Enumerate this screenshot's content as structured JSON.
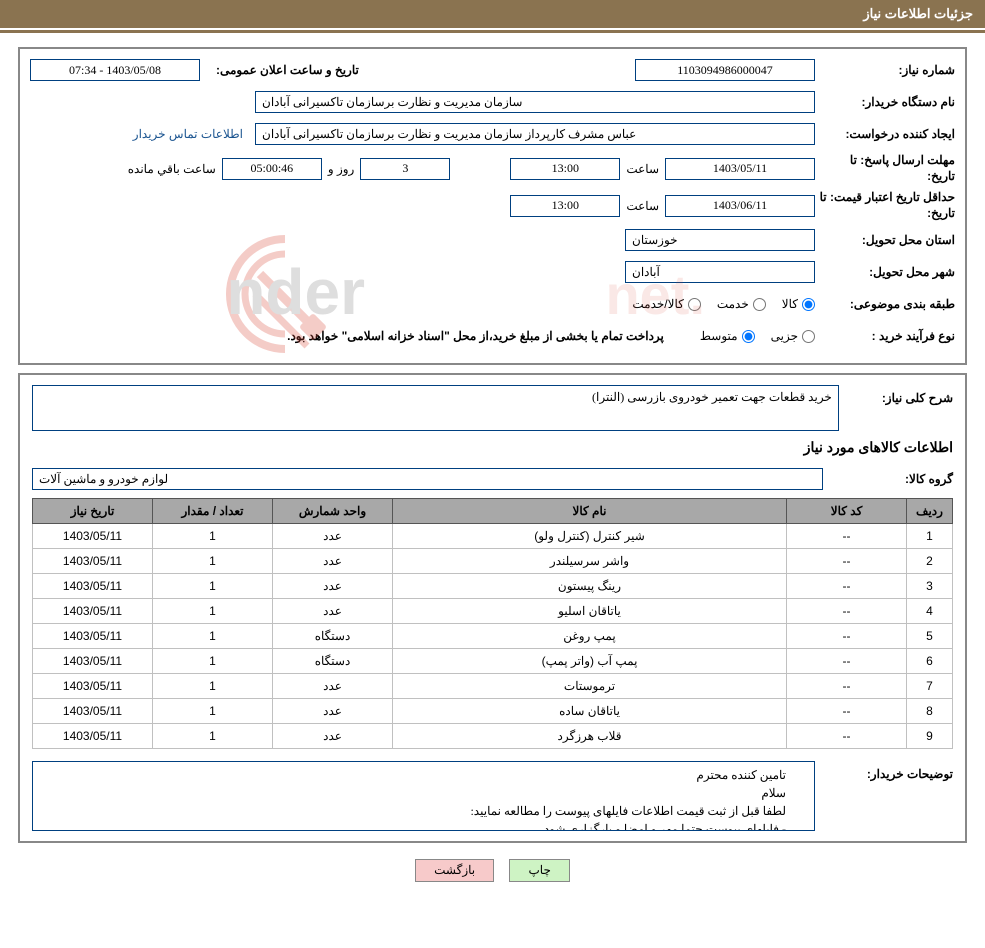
{
  "header": {
    "title": "جزئیات اطلاعات نیاز"
  },
  "form": {
    "need_number_label": "شماره نیاز:",
    "need_number": "1103094986000047",
    "announce_label": "تاریخ و ساعت اعلان عمومی:",
    "announce_value": "1403/05/08 - 07:34",
    "buyer_org_label": "نام دستگاه خریدار:",
    "buyer_org": "سازمان مدیریت و نظارت برسازمان تاکسیرانی آبادان",
    "requester_label": "ایجاد کننده درخواست:",
    "requester": "عباس مشرف کارپرداز سازمان مدیریت و نظارت برسازمان تاکسیرانی آبادان",
    "buyer_contact_link": "اطلاعات تماس خریدار",
    "reply_deadline_label": "مهلت ارسال پاسخ: تا تاریخ:",
    "reply_deadline_date": "1403/05/11",
    "time_label": "ساعت",
    "reply_deadline_time": "13:00",
    "days_label": "روز و",
    "remaining_label": "ساعت باقي مانده",
    "remaining_days": "3",
    "remaining_time": "05:00:46",
    "price_validity_label": "حداقل تاریخ اعتبار قیمت: تا تاریخ:",
    "price_validity_date": "1403/06/11",
    "price_validity_time": "13:00",
    "province_label": "استان محل تحویل:",
    "province": "خوزستان",
    "city_label": "شهر محل تحویل:",
    "city": "آبادان",
    "subject_class_label": "طبقه بندی موضوعی:",
    "subject_opt1": "کالا",
    "subject_opt2": "خدمت",
    "subject_opt3": "کالا/خدمت",
    "purchase_type_label": "نوع فرآیند خرید :",
    "purchase_opt1": "جزیی",
    "purchase_opt2": "متوسط",
    "payment_note": "پرداخت تمام یا بخشی از مبلغ خرید،از محل \"اسناد خزانه اسلامی\" خواهد بود."
  },
  "desc": {
    "general_label": "شرح کلی نیاز:",
    "general_text": "خرید قطعات جهت تعمیر خودروی بازرسی (النترا)",
    "items_title": "اطلاعات کالاهای مورد نیاز",
    "group_label": "گروه کالا:",
    "group_value": "لوازم خودرو و ماشین آلات",
    "buyer_notes_label": "توضیحات خریدار:",
    "buyer_notes_text": "تامین کننده محترم\nسلام\nلطفا قبل از ثبت قیمت اطلاعات فایلهای پیوست را مطالعه نمایید:\n- فایلهای پیوست حتما مهر و امضا و بارگزاری شود"
  },
  "table": {
    "columns": [
      "ردیف",
      "کد کالا",
      "نام کالا",
      "واحد شمارش",
      "تعداد / مقدار",
      "تاریخ نیاز"
    ],
    "rows": [
      [
        "1",
        "--",
        "شیر کنترل (کنترل ولو)",
        "عدد",
        "1",
        "1403/05/11"
      ],
      [
        "2",
        "--",
        "واشر سرسیلندر",
        "عدد",
        "1",
        "1403/05/11"
      ],
      [
        "3",
        "--",
        "رینگ پیستون",
        "عدد",
        "1",
        "1403/05/11"
      ],
      [
        "4",
        "--",
        "یاتاقان اسلیو",
        "عدد",
        "1",
        "1403/05/11"
      ],
      [
        "5",
        "--",
        "پمپ روغن",
        "دستگاه",
        "1",
        "1403/05/11"
      ],
      [
        "6",
        "--",
        "پمپ آب (واتر پمپ)",
        "دستگاه",
        "1",
        "1403/05/11"
      ],
      [
        "7",
        "--",
        "ترموستات",
        "عدد",
        "1",
        "1403/05/11"
      ],
      [
        "8",
        "--",
        "یاتاقان ساده",
        "عدد",
        "1",
        "1403/05/11"
      ],
      [
        "9",
        "--",
        "قلاب هرزگرد",
        "عدد",
        "1",
        "1403/05/11"
      ]
    ],
    "col_widths": [
      "46px",
      "120px",
      "auto",
      "120px",
      "120px",
      "120px"
    ]
  },
  "buttons": {
    "print": "چاپ",
    "back": "بازگشت"
  },
  "colors": {
    "header_bg": "#8a7350",
    "border": "#004080",
    "th_bg": "#a8a8a8",
    "btn_print": "#cef3c4",
    "btn_back": "#f7caca"
  }
}
